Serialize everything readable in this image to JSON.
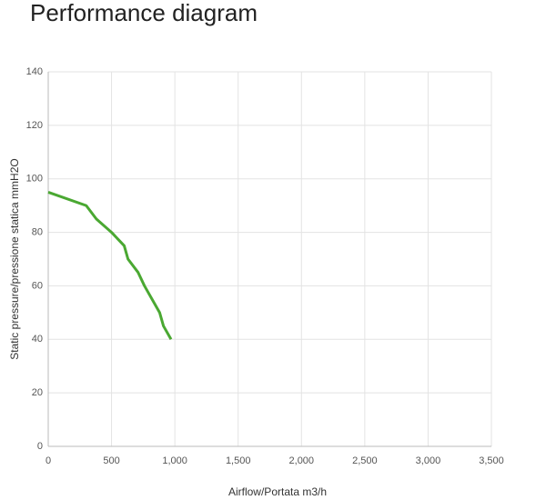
{
  "chart_data": {
    "type": "line",
    "title": "Performance diagram",
    "x_label": "Airflow/Portata m3/h",
    "y_label": "Static pressure/pressione statica mmH2O",
    "series": [
      {
        "color": "#4aa832",
        "x": [
          0,
          300,
          380,
          500,
          600,
          630,
          710,
          760,
          880,
          910,
          970
        ],
        "values": [
          95,
          90,
          85,
          80,
          75,
          70,
          65,
          60,
          50,
          45,
          40
        ]
      }
    ],
    "xlim": [
      0,
      3500
    ],
    "xticks": [
      0,
      500,
      {
        "value": 1000,
        "label": "1,000"
      },
      {
        "value": 1500,
        "label": "1,500"
      },
      {
        "value": 2000,
        "label": "2,000"
      },
      {
        "value": 2500,
        "label": "2,500"
      },
      {
        "value": 3000,
        "label": "3,000"
      },
      {
        "value": 3500,
        "label": "3,500"
      }
    ],
    "ylim": [
      0,
      140
    ],
    "yticks": [
      0,
      20,
      40,
      60,
      80,
      100,
      120,
      140
    ],
    "grid": true
  }
}
